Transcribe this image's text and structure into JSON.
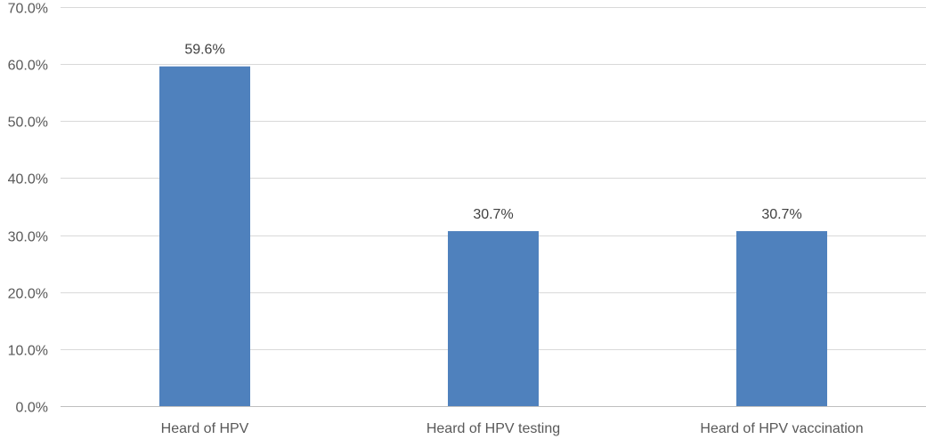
{
  "chart_data": {
    "type": "bar",
    "categories": [
      "Heard of HPV",
      "Heard of HPV testing",
      "Heard of HPV vaccination"
    ],
    "values": [
      59.6,
      30.7,
      30.7
    ],
    "data_labels": [
      "59.6%",
      "30.7%",
      "30.7%"
    ],
    "title": "",
    "xlabel": "",
    "ylabel": "",
    "ylim": [
      0,
      70
    ],
    "y_ticks": [
      0,
      10,
      20,
      30,
      40,
      50,
      60,
      70
    ],
    "y_tick_labels": [
      "0.0%",
      "10.0%",
      "20.0%",
      "30.0%",
      "40.0%",
      "50.0%",
      "60.0%",
      "70.0%"
    ],
    "grid": true,
    "legend": "none",
    "colors": {
      "bar": "#4f81bd",
      "grid": "#d9d9d9",
      "axis": "#bfbfbf"
    }
  }
}
